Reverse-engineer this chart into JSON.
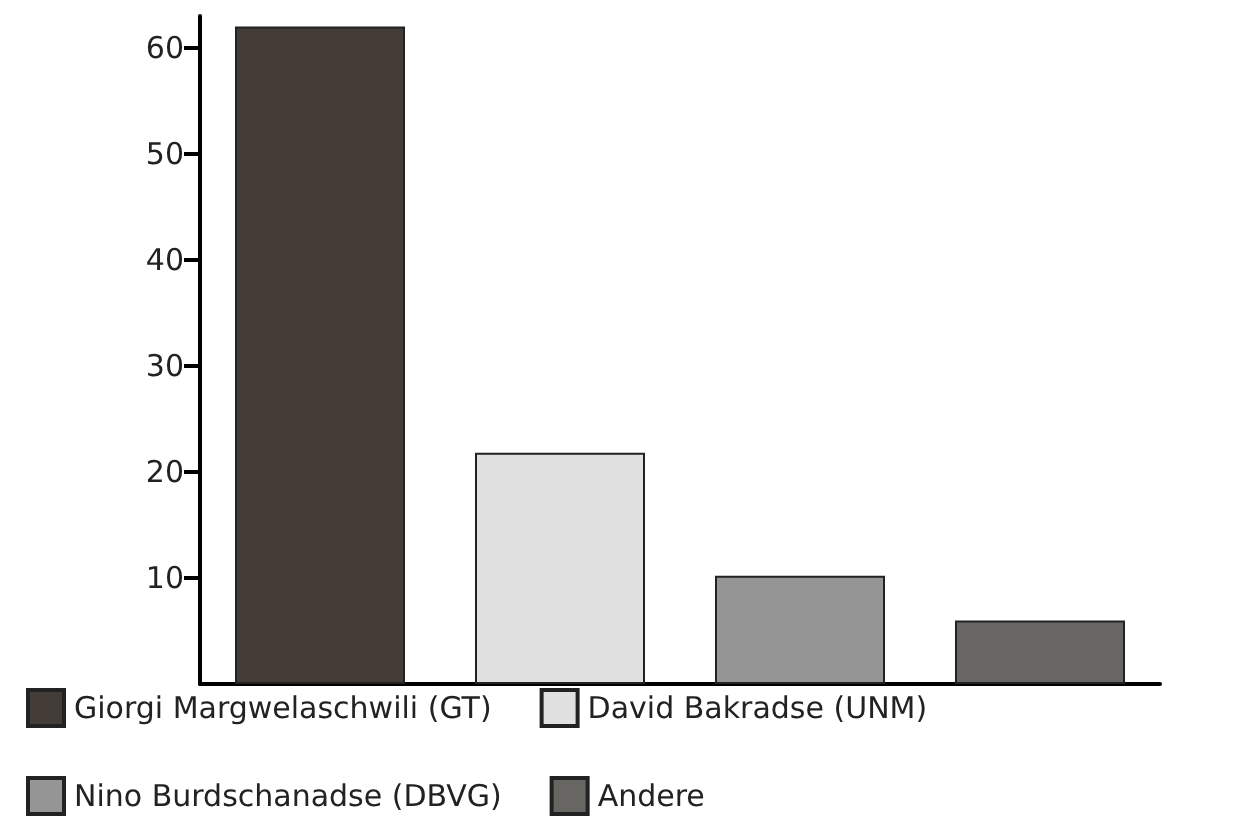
{
  "chart_data": {
    "type": "bar",
    "categories": [
      null,
      null,
      null,
      null
    ],
    "stacked": true,
    "series": [
      {
        "name": "Giorgi Margwelaschwili (GT)",
        "color": "#433c37",
        "values": [
          62,
          null,
          null,
          null
        ]
      },
      {
        "name": "David Bakradse (UNM)",
        "color": "#e0e0e0",
        "values": [
          null,
          21.8,
          null,
          null
        ]
      },
      {
        "name": "Nino Burdschanadse (DBVG)",
        "color": "#959595",
        "values": [
          null,
          null,
          10.2,
          null
        ]
      },
      {
        "name": "Andere",
        "color": "#686662",
        "values": [
          null,
          null,
          null,
          6
        ]
      }
    ],
    "ylim": [
      0,
      63
    ],
    "yticks": [
      10,
      20,
      30,
      40,
      50,
      60
    ],
    "grid": false,
    "legend": "bottom"
  }
}
